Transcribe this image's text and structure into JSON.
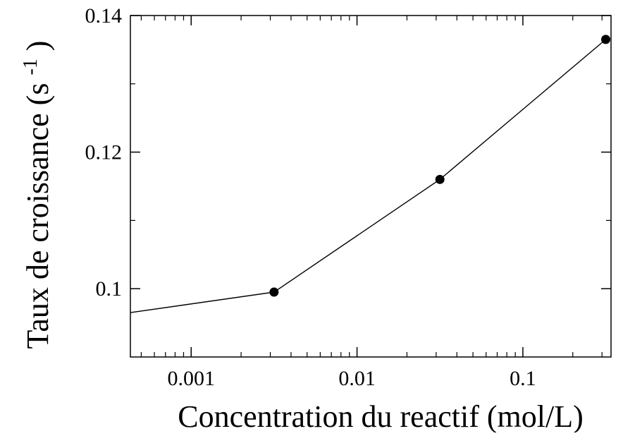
{
  "chart_data": {
    "type": "line",
    "title": "",
    "xlabel": "Concentration du reactif (mol/L)",
    "ylabel": {
      "main": "Taux de croissance (s",
      "superscript": "-1",
      "suffix": ")"
    },
    "x_scale": "log",
    "xlim": [
      0.00043,
      0.34
    ],
    "ylim": [
      0.09,
      0.14
    ],
    "x_ticks": [
      {
        "value": 0.001,
        "label": "0.001"
      },
      {
        "value": 0.01,
        "label": "0.01"
      },
      {
        "value": 0.1,
        "label": "0.1"
      }
    ],
    "y_ticks": [
      {
        "value": 0.1,
        "label": "0.1"
      },
      {
        "value": 0.12,
        "label": "0.12"
      },
      {
        "value": 0.14,
        "label": "0.14"
      }
    ],
    "y_minor_ticks": [
      0.11,
      0.13
    ],
    "grid": false,
    "series": [
      {
        "x": [
          0.00043,
          0.00316,
          0.0316,
          0.316
        ],
        "y": [
          0.0965,
          0.0995,
          0.116,
          0.1365
        ],
        "markers": [
          false,
          true,
          true,
          true
        ],
        "color": "#000000"
      }
    ]
  }
}
